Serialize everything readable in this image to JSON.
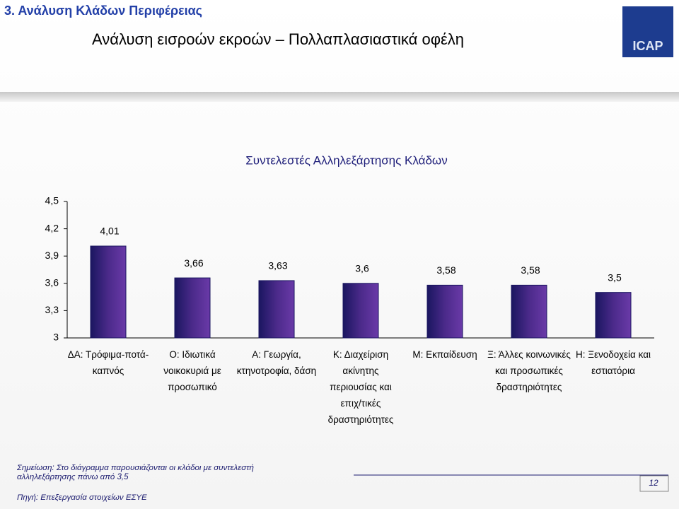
{
  "header": {
    "section": "3. Ανάλυση Κλάδων Περιφέρειας",
    "title": "Ανάλυση εισροών εκροών – Πολλαπλασιαστικά οφέλη",
    "logo": "ICAP"
  },
  "chart_data": {
    "type": "bar",
    "title": "Συντελεστές Αλληλεξάρτησης Κλάδων",
    "categories": [
      "ΔΑ: Τρόφιμα-ποτά-καπνός",
      "Ο: Ιδιωτικά νοικοκυριά με προσωπικό",
      "Α: Γεωργία, κτηνοτροφία, δάση",
      "Κ: Διαχείριση ακίνητης περιουσίας και επιχ/τικές δραστηριότητες",
      "Μ: Εκπαίδευση",
      "Ξ: Άλλες κοινωνικές και προσωπικές δραστηριότητες",
      "Η: Ξενοδοχεία και εστιατόρια"
    ],
    "values": [
      4.01,
      3.66,
      3.63,
      3.6,
      3.58,
      3.58,
      3.5
    ],
    "value_labels": [
      "4,01",
      "3,66",
      "3,63",
      "3,6",
      "3,58",
      "3,58",
      "3,5"
    ],
    "color": "#4b2a8a",
    "ylim": [
      3,
      4.5
    ],
    "yticks": [
      3,
      {
        "value": 3.3,
        "label": "3,3"
      },
      {
        "value": 3.6,
        "label": "3,6"
      },
      {
        "value": 3.9,
        "label": "3,9"
      },
      {
        "value": 4.2,
        "label": "4,2"
      },
      {
        "value": 4.5,
        "label": "4,5"
      }
    ],
    "grid": false
  },
  "footer": {
    "note": [
      "Σημείωση: Στο διάγραμμα παρουσιάζονται οι κλάδοι με συντελεστή",
      "αλληλεξάρτησης πάνω από 3,5"
    ],
    "source": "Πηγή: Επεξεργασία στοιχείων ΕΣΥΕ",
    "page": "12"
  }
}
